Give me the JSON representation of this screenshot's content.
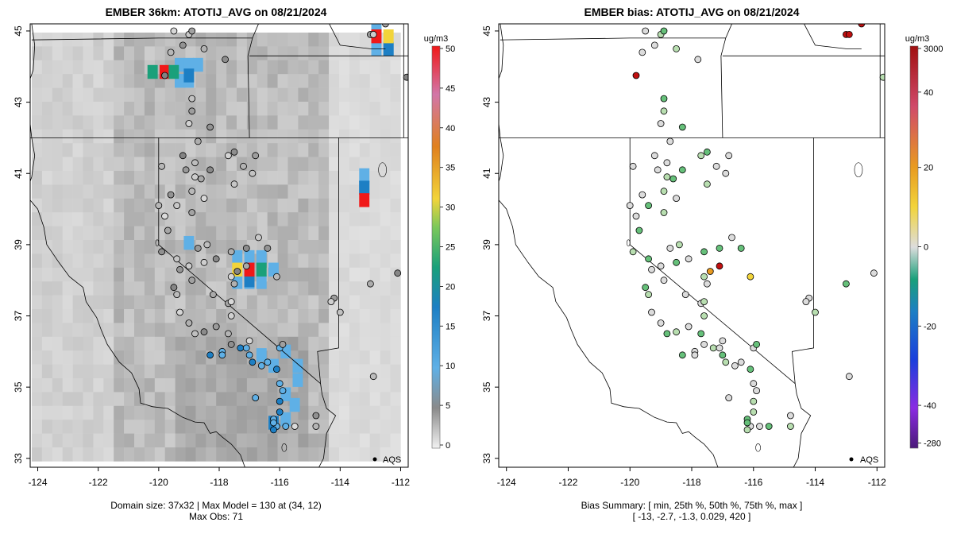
{
  "left_panel": {
    "title": "EMBER 36km: ATOTIJ_AVG on 08/21/2024",
    "colorbar_unit": "ug/m3",
    "colorbar_ticks": [
      "0",
      "5",
      "10",
      "15",
      "20",
      "25",
      "30",
      "35",
      "40",
      "45",
      "50"
    ],
    "footer_line1": "Domain size: 37x32 | Max Model = 130 at (34, 12)",
    "footer_line2": "Max Obs: 71",
    "aqs_label": "AQS"
  },
  "right_panel": {
    "title": "EMBER bias: ATOTIJ_AVG on 08/21/2024",
    "colorbar_unit": "ug/m3",
    "colorbar_ticks": [
      "3000",
      "40",
      "20",
      "0",
      "-20",
      "-40",
      "-280"
    ],
    "footer_line1": "Bias Summary: [ min, 25th %, 50th %, 75th %, max ]",
    "footer_line2": "[ -13,   -2.7,   -1.3,   0.029,   420 ]",
    "aqs_label": "AQS"
  },
  "axes": {
    "x_ticks": [
      "-124",
      "-122",
      "-120",
      "-118",
      "-116",
      "-114",
      "-112"
    ],
    "y_ticks": [
      "45",
      "43",
      "41",
      "39",
      "37",
      "35",
      "33"
    ],
    "lon_range": [
      -124.25,
      -111.75
    ],
    "lat_range": [
      32.75,
      45.2
    ]
  },
  "chart_data": [
    {
      "type": "heatmap",
      "title": "EMBER 36km: ATOTIJ_AVG on 08/21/2024",
      "units": "ug/m3",
      "colorbar_range": [
        0,
        50
      ],
      "domain_size": "37x32",
      "max_model": 130,
      "max_obs": 71,
      "hotspots": [
        {
          "lon": -119.8,
          "lat": 43.85,
          "value": 50
        },
        {
          "lon": -119.5,
          "lat": 43.85,
          "value": 22
        },
        {
          "lon": -113.2,
          "lat": 40.6,
          "value": 18
        },
        {
          "lon": -113.2,
          "lat": 40.25,
          "value": 50
        },
        {
          "lon": -112.8,
          "lat": 44.85,
          "value": 50
        },
        {
          "lon": -112.4,
          "lat": 44.85,
          "value": 28
        },
        {
          "lon": -117.0,
          "lat": 38.3,
          "value": 50
        },
        {
          "lon": -117.4,
          "lat": 38.3,
          "value": 28
        },
        {
          "lon": -116.6,
          "lat": 38.3,
          "value": 20
        }
      ]
    },
    {
      "type": "scatter",
      "title": "EMBER bias: ATOTIJ_AVG on 08/21/2024",
      "units": "ug/m3",
      "bias_summary": {
        "min": -13,
        "p25": -2.7,
        "p50": -1.3,
        "p75": 0.029,
        "max": 420
      }
    }
  ],
  "colors": {
    "gray_low": "#dddddd",
    "gray_high": "#8a8a8a",
    "light_blue": "#5fb0e6",
    "blue": "#1d7fc4",
    "teal": "#1aa07a",
    "yellow": "#f2d43a",
    "red": "#f01818",
    "orange": "#e89a20",
    "light_green": "#b8deb0",
    "green": "#66c07a",
    "dark_red": "#c01010"
  }
}
